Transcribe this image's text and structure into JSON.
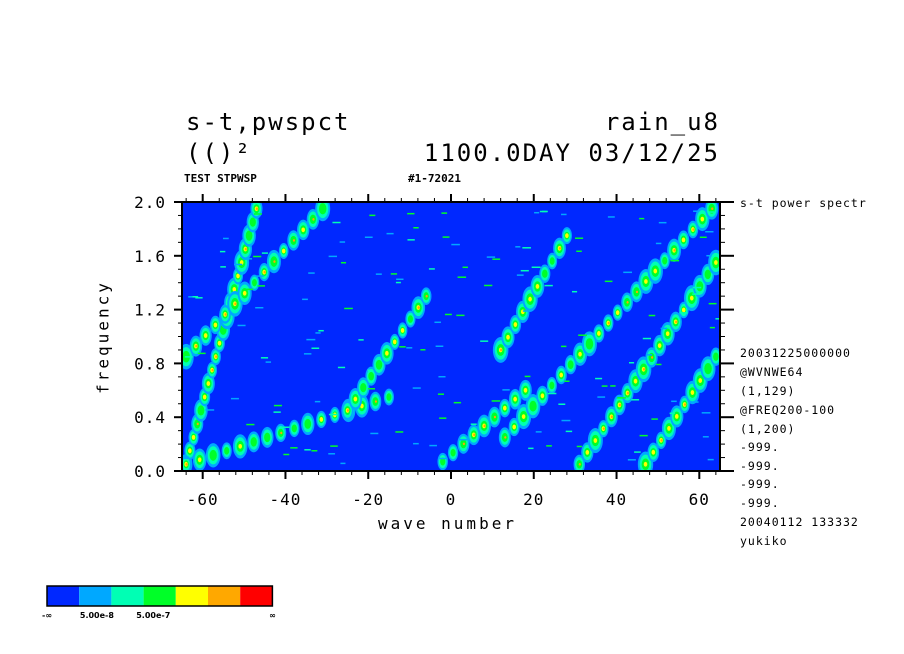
{
  "header": {
    "title_left_1": "s-t,pwspct",
    "title_left_2": "(()²",
    "title_right_1": "rain_u8",
    "title_right_2": "1100.0DAY 03/12/25",
    "sub_left": "TEST STPWSP",
    "sub_mid": "#1-72021"
  },
  "sidebar": {
    "top_note": "s-t power spectr",
    "lines": [
      "20031225000000",
      "@WVNWE64",
      "(1,129)",
      "@FREQ200-100",
      "(1,200)",
      "-999.",
      "-999.",
      "-999.",
      "-999.",
      "20040112 133332",
      "yukiko"
    ]
  },
  "colorbar": {
    "colors": [
      "#0028ff",
      "#00a8ff",
      "#00ffb4",
      "#00ff28",
      "#ffff00",
      "#ffa800",
      "#ff0000"
    ],
    "labels": [
      "-∞",
      "5.00e-8",
      "5.00e-7",
      "∞"
    ]
  },
  "chart_data": {
    "type": "heatmap",
    "title": "",
    "xlabel": "wave number",
    "ylabel": "frequency",
    "xlim": [
      -65,
      65
    ],
    "ylim": [
      0.0,
      2.0
    ],
    "xticks": [
      "-60",
      "-40",
      "-20",
      "0",
      "20",
      "40",
      "60"
    ],
    "xtick_values": [
      -60,
      -40,
      -20,
      0,
      20,
      40,
      60
    ],
    "yticks": [
      "0.0",
      "0.4",
      "0.8",
      "1.2",
      "1.6",
      "2.0"
    ],
    "ytick_values": [
      0.0,
      0.4,
      0.8,
      1.2,
      1.6,
      2.0
    ],
    "background_color": "#0028ff",
    "bands": [
      {
        "name": "",
        "x_start": -64,
        "y_start": 0.05,
        "x_end": -47,
        "y_end": 1.95
      },
      {
        "name": "",
        "x_start": -64,
        "y_start": 0.85,
        "x_end": -31,
        "y_end": 1.95
      },
      {
        "name": "",
        "x_start": -64,
        "y_start": 0.05,
        "x_end": -15,
        "y_end": 0.55
      },
      {
        "name": "",
        "x_start": 31,
        "y_start": 0.05,
        "x_end": 64,
        "y_end": 1.55
      },
      {
        "name": "",
        "x_start": 13,
        "y_start": 0.25,
        "x_end": 63,
        "y_end": 1.95
      },
      {
        "name": "",
        "x_start": 47,
        "y_start": 0.05,
        "x_end": 64,
        "y_end": 0.85
      },
      {
        "name": "",
        "x_start": -25,
        "y_start": 0.45,
        "x_end": -6,
        "y_end": 1.3
      },
      {
        "name": "",
        "x_start": 12,
        "y_start": 0.9,
        "x_end": 28,
        "y_end": 1.75
      },
      {
        "name": "",
        "x_start": -2,
        "y_start": 0.07,
        "x_end": 18,
        "y_end": 0.6
      }
    ]
  }
}
